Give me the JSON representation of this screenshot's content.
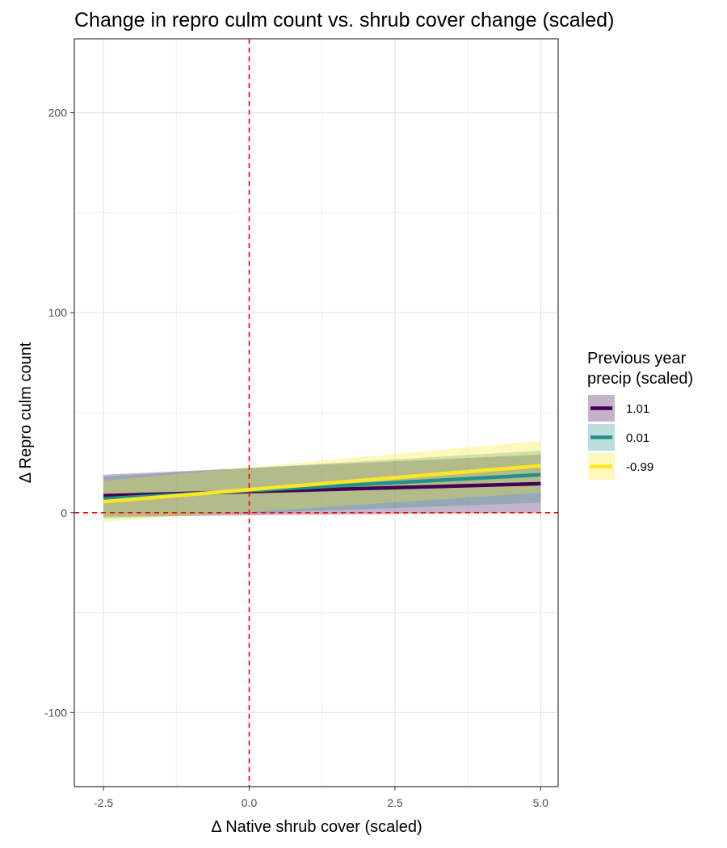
{
  "chart_data": {
    "type": "line",
    "title": "Change in repro culm count vs. shrub cover change (scaled)",
    "xlabel": "Δ Native shrub cover (scaled)",
    "ylabel": "Δ Repro culm count",
    "xlim": [
      -3.0,
      5.3
    ],
    "ylim": [
      -137,
      237
    ],
    "x_ticks": [
      -2.5,
      0.0,
      2.5,
      5.0
    ],
    "x_tick_labels": [
      "-2.5",
      "0.0",
      "2.5",
      "5.0"
    ],
    "y_ticks": [
      -100,
      0,
      100,
      200
    ],
    "y_tick_labels": [
      "-100",
      "0",
      "100",
      "200"
    ],
    "grid": true,
    "reference_lines": [
      {
        "axis": "x",
        "value": 0,
        "color": "#ff0000",
        "style": "dashed"
      },
      {
        "axis": "y",
        "value": 0,
        "color": "#ff0000",
        "style": "dashed"
      }
    ],
    "legend": {
      "title": [
        "Previous year",
        "precip (scaled)"
      ],
      "placement": "right"
    },
    "series": [
      {
        "name": "1.01",
        "color": "#440154",
        "x": [
          -2.5,
          5.0
        ],
        "y": [
          8.5,
          14.5
        ],
        "lower": [
          -2,
          0
        ],
        "upper": [
          19,
          29
        ]
      },
      {
        "name": "0.01",
        "color": "#21918c",
        "x": [
          -2.5,
          5.0
        ],
        "y": [
          7,
          19
        ],
        "lower": [
          -3,
          5
        ],
        "upper": [
          18,
          31
        ]
      },
      {
        "name": "-0.99",
        "color": "#fde725",
        "x": [
          -2.5,
          5.0
        ],
        "y": [
          5.5,
          23.5
        ],
        "lower": [
          -4.5,
          10
        ],
        "upper": [
          16,
          36
        ]
      }
    ]
  }
}
